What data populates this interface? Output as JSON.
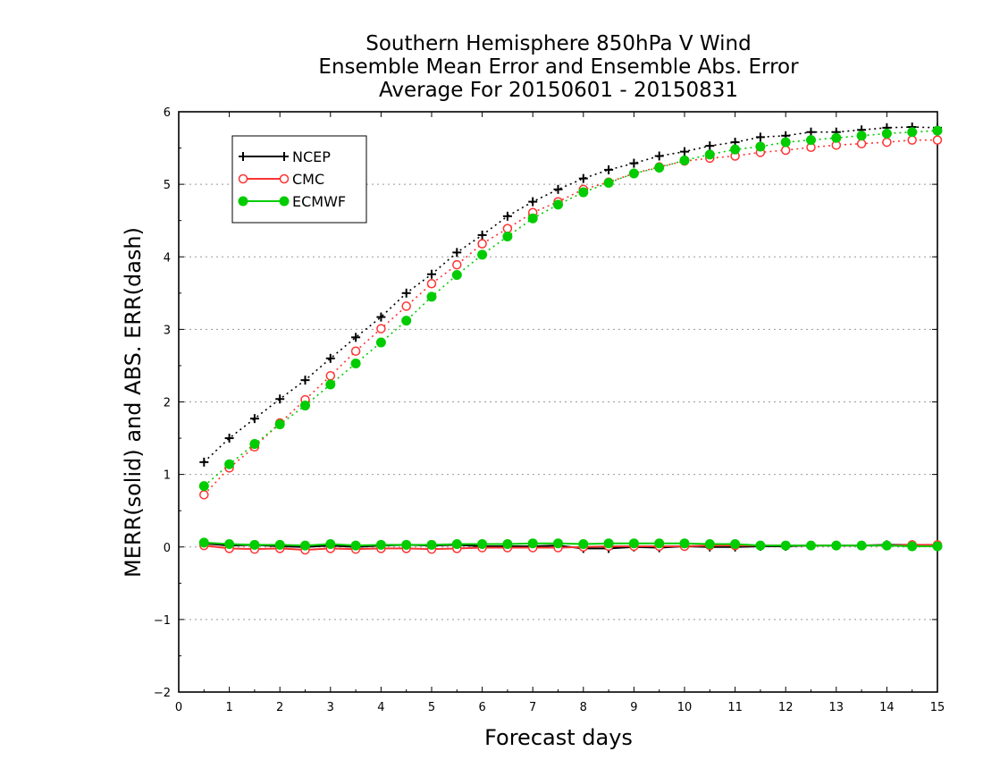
{
  "chart_data": {
    "type": "line",
    "title_lines": [
      "Southern Hemisphere 850hPa V Wind",
      "Ensemble Mean Error and Ensemble Abs. Error",
      "Average For 20150601 - 20150831"
    ],
    "xlabel": "Forecast days",
    "ylabel": "MERR(solid) and ABS. ERR(dash)",
    "xlim": [
      0,
      15
    ],
    "ylim": [
      -2,
      6
    ],
    "x_ticks": [
      "0",
      "1",
      "2",
      "3",
      "4",
      "5",
      "6",
      "7",
      "8",
      "9",
      "10",
      "11",
      "12",
      "13",
      "14",
      "15"
    ],
    "y_ticks": [
      "-2",
      "-1",
      "0",
      "1",
      "2",
      "3",
      "4",
      "5",
      "6"
    ],
    "grid": "horizontal dotted",
    "legend": {
      "placement": "top-left",
      "entries": [
        "NCEP",
        "CMC",
        "ECMWF"
      ]
    },
    "x": [
      0.5,
      1,
      1.5,
      2,
      2.5,
      3,
      3.5,
      4,
      4.5,
      5,
      5.5,
      6,
      6.5,
      7,
      7.5,
      8,
      8.5,
      9,
      9.5,
      10,
      10.5,
      11,
      11.5,
      12,
      12.5,
      13,
      13.5,
      14,
      14.5,
      15
    ],
    "series": [
      {
        "name": "NCEP",
        "color": "#000000",
        "marker": "plus",
        "abs_err": [
          1.17,
          1.5,
          1.77,
          2.04,
          2.3,
          2.6,
          2.89,
          3.17,
          3.5,
          3.76,
          4.06,
          4.3,
          4.56,
          4.76,
          4.93,
          5.08,
          5.2,
          5.29,
          5.39,
          5.45,
          5.53,
          5.58,
          5.65,
          5.67,
          5.72,
          5.72,
          5.75,
          5.78,
          5.79,
          5.78
        ],
        "mean_err": [
          0.05,
          0.02,
          0.03,
          0.01,
          0.0,
          0.02,
          0.0,
          0.02,
          0.03,
          0.02,
          0.03,
          0.01,
          0.01,
          0.01,
          0.02,
          -0.02,
          -0.02,
          0.0,
          -0.01,
          0.01,
          0.0,
          0.0,
          0.01,
          0.01,
          0.02,
          0.02,
          0.02,
          0.03,
          0.03,
          0.02
        ]
      },
      {
        "name": "CMC",
        "color": "#ff3333",
        "marker": "open-circle",
        "abs_err": [
          0.72,
          1.09,
          1.38,
          1.71,
          2.03,
          2.36,
          2.7,
          3.01,
          3.32,
          3.63,
          3.89,
          4.18,
          4.39,
          4.61,
          4.76,
          4.93,
          5.03,
          5.15,
          5.24,
          5.32,
          5.36,
          5.39,
          5.44,
          5.47,
          5.51,
          5.54,
          5.56,
          5.58,
          5.61,
          5.61
        ],
        "mean_err": [
          0.02,
          -0.02,
          -0.03,
          -0.02,
          -0.04,
          -0.02,
          -0.03,
          -0.02,
          -0.02,
          -0.03,
          -0.02,
          -0.01,
          -0.01,
          -0.01,
          -0.01,
          0.0,
          0.01,
          0.01,
          0.01,
          0.01,
          0.02,
          0.02,
          0.02,
          0.02,
          0.02,
          0.02,
          0.02,
          0.02,
          0.03,
          0.03
        ]
      },
      {
        "name": "ECMWF",
        "color": "#00cc00",
        "marker": "filled-circle",
        "abs_err": [
          0.84,
          1.14,
          1.42,
          1.69,
          1.95,
          2.24,
          2.53,
          2.82,
          3.12,
          3.45,
          3.75,
          4.03,
          4.28,
          4.53,
          4.72,
          4.89,
          5.02,
          5.15,
          5.23,
          5.33,
          5.41,
          5.48,
          5.52,
          5.58,
          5.61,
          5.64,
          5.67,
          5.7,
          5.72,
          5.74
        ],
        "mean_err": [
          0.06,
          0.04,
          0.03,
          0.03,
          0.02,
          0.04,
          0.02,
          0.03,
          0.03,
          0.03,
          0.04,
          0.04,
          0.04,
          0.05,
          0.05,
          0.04,
          0.05,
          0.05,
          0.05,
          0.05,
          0.04,
          0.04,
          0.02,
          0.02,
          0.02,
          0.02,
          0.02,
          0.02,
          0.01,
          0.01
        ]
      }
    ]
  }
}
